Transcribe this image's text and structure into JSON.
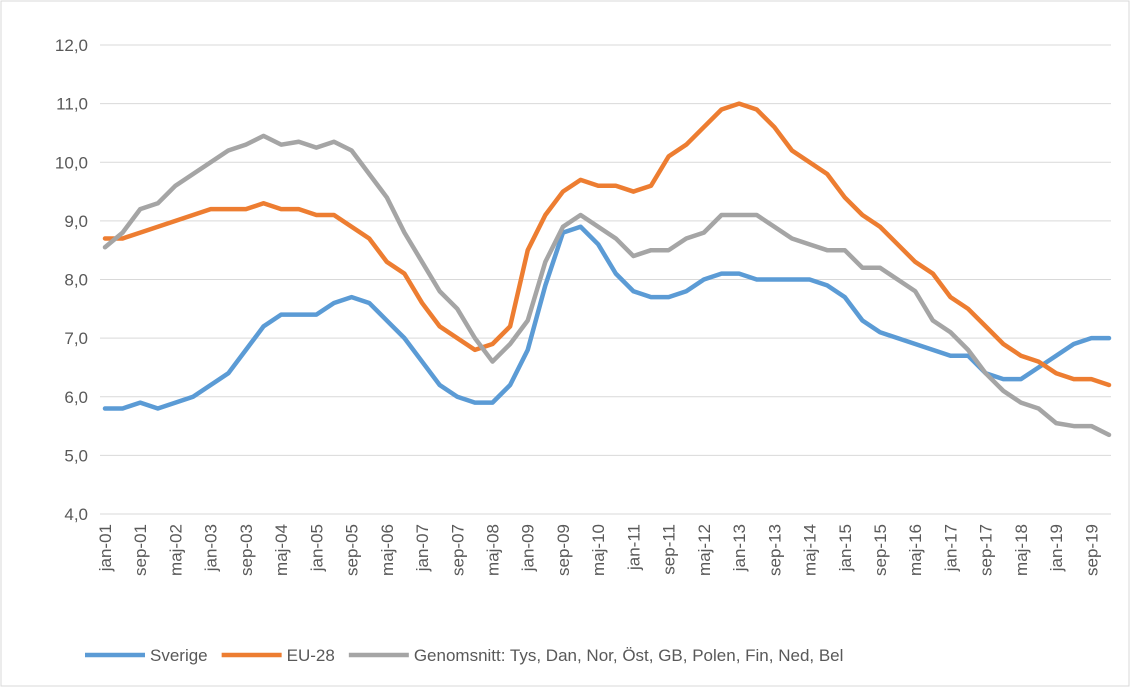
{
  "chart_data": {
    "type": "line",
    "categories": [
      "jan-01",
      null,
      "sep-01",
      null,
      "maj-02",
      null,
      "jan-03",
      null,
      "sep-03",
      null,
      "maj-04",
      null,
      "jan-05",
      null,
      "sep-05",
      null,
      "maj-06",
      null,
      "jan-07",
      null,
      "sep-07",
      null,
      "maj-08",
      null,
      "jan-09",
      null,
      "sep-09",
      null,
      "maj-10",
      null,
      "jan-11",
      null,
      "sep-11",
      null,
      "maj-12",
      null,
      "jan-13",
      null,
      "sep-13",
      null,
      "maj-14",
      null,
      "jan-15",
      null,
      "sep-15",
      null,
      "maj-16",
      null,
      "jan-17",
      null,
      "sep-17",
      null,
      "maj-18",
      null,
      "jan-19",
      null,
      "sep-19",
      null
    ],
    "series": [
      {
        "name": "Sverige",
        "color": "#5b9bd5",
        "values": [
          5.8,
          5.8,
          5.9,
          5.8,
          5.9,
          6.0,
          6.2,
          6.4,
          6.8,
          7.2,
          7.4,
          7.4,
          7.4,
          7.6,
          7.7,
          7.6,
          7.3,
          7.0,
          6.6,
          6.2,
          6.0,
          5.9,
          5.9,
          6.2,
          6.8,
          7.9,
          8.8,
          8.9,
          8.6,
          8.1,
          7.8,
          7.7,
          7.7,
          7.8,
          8.0,
          8.1,
          8.1,
          8.0,
          8.0,
          8.0,
          8.0,
          7.9,
          7.7,
          7.3,
          7.1,
          7.0,
          6.9,
          6.8,
          6.7,
          6.7,
          6.4,
          6.3,
          6.3,
          6.5,
          6.7,
          6.9,
          7.0,
          7.0
        ]
      },
      {
        "name": "EU-28",
        "color": "#ed7d31",
        "values": [
          8.7,
          8.7,
          8.8,
          8.9,
          9.0,
          9.1,
          9.2,
          9.2,
          9.2,
          9.3,
          9.2,
          9.2,
          9.1,
          9.1,
          8.9,
          8.7,
          8.3,
          8.1,
          7.6,
          7.2,
          7.0,
          6.8,
          6.9,
          7.2,
          8.5,
          9.1,
          9.5,
          9.7,
          9.6,
          9.6,
          9.5,
          9.6,
          10.1,
          10.3,
          10.6,
          10.9,
          11.0,
          10.9,
          10.6,
          10.2,
          10.0,
          9.8,
          9.4,
          9.1,
          8.9,
          8.6,
          8.3,
          8.1,
          7.7,
          7.5,
          7.2,
          6.9,
          6.7,
          6.6,
          6.4,
          6.3,
          6.3,
          6.2
        ]
      },
      {
        "name": "Genomsnitt: Tys, Dan, Nor, Öst, GB, Polen, Fin, Ned, Bel",
        "color": "#a5a5a5",
        "values": [
          8.55,
          8.8,
          9.2,
          9.3,
          9.6,
          9.8,
          10.0,
          10.2,
          10.3,
          10.45,
          10.3,
          10.35,
          10.25,
          10.35,
          10.2,
          9.8,
          9.4,
          8.8,
          8.3,
          7.8,
          7.5,
          7.0,
          6.6,
          6.9,
          7.3,
          8.3,
          8.9,
          9.1,
          8.9,
          8.7,
          8.4,
          8.5,
          8.5,
          8.7,
          8.8,
          9.1,
          9.1,
          9.1,
          8.9,
          8.7,
          8.6,
          8.5,
          8.5,
          8.2,
          8.2,
          8.0,
          7.8,
          7.3,
          7.1,
          6.8,
          6.4,
          6.1,
          5.9,
          5.8,
          5.55,
          5.5,
          5.5,
          5.35
        ]
      }
    ],
    "ylim": [
      4,
      12
    ],
    "yticks": [
      {
        "value": 4,
        "label": "4,0"
      },
      {
        "value": 5,
        "label": "5,0"
      },
      {
        "value": 6,
        "label": "6,0"
      },
      {
        "value": 7,
        "label": "7,0"
      },
      {
        "value": 8,
        "label": "8,0"
      },
      {
        "value": 9,
        "label": "9,0"
      },
      {
        "value": 10,
        "label": "10,0"
      },
      {
        "value": 11,
        "label": "11,0"
      },
      {
        "value": 12,
        "label": "12,0"
      }
    ],
    "grid": true,
    "legend": "bottom"
  }
}
